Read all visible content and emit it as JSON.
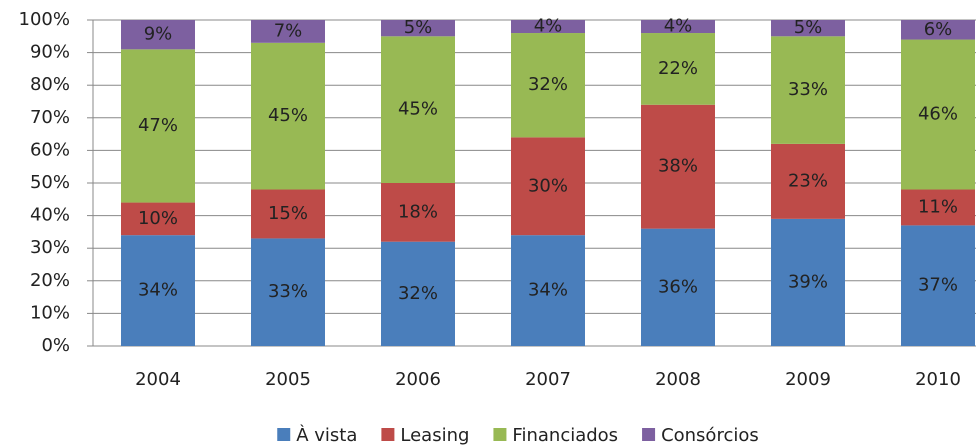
{
  "chart_data": {
    "type": "stacked-bar",
    "categories": [
      "2004",
      "2005",
      "2006",
      "2007",
      "2008",
      "2009",
      "2010"
    ],
    "series": [
      {
        "name": "À vista",
        "color": "#4a7ebb",
        "values": [
          34,
          33,
          32,
          34,
          36,
          39,
          37
        ],
        "value_labels": [
          "34%",
          "33%",
          "32%",
          "34%",
          "36%",
          "39%",
          "37%"
        ]
      },
      {
        "name": "Leasing",
        "color": "#be4b48",
        "values": [
          10,
          15,
          18,
          30,
          38,
          23,
          11
        ],
        "value_labels": [
          "10%",
          "15%",
          "18%",
          "30%",
          "38%",
          "23%",
          "11%"
        ]
      },
      {
        "name": "Financiados",
        "color": "#98b954",
        "values": [
          47,
          45,
          45,
          32,
          22,
          33,
          46
        ],
        "value_labels": [
          "47%",
          "45%",
          "45%",
          "32%",
          "22%",
          "33%",
          "46%"
        ]
      },
      {
        "name": "Consórcios",
        "color": "#7d60a0",
        "values": [
          9,
          7,
          5,
          4,
          4,
          5,
          6
        ],
        "value_labels": [
          "9%",
          "7%",
          "5%",
          "4%",
          "4%",
          "5%",
          "6%"
        ]
      }
    ],
    "ylim": [
      0,
      100
    ],
    "yticks": [
      {
        "value": 0,
        "label": "0%"
      },
      {
        "value": 10,
        "label": "10%"
      },
      {
        "value": 20,
        "label": "20%"
      },
      {
        "value": 30,
        "label": "30%"
      },
      {
        "value": 40,
        "label": "40%"
      },
      {
        "value": 50,
        "label": "50%"
      },
      {
        "value": 60,
        "label": "60%"
      },
      {
        "value": 70,
        "label": "70%"
      },
      {
        "value": 80,
        "label": "80%"
      },
      {
        "value": 90,
        "label": "90%"
      },
      {
        "value": 100,
        "label": "100%"
      }
    ],
    "grid": true,
    "legend": "bottom"
  }
}
